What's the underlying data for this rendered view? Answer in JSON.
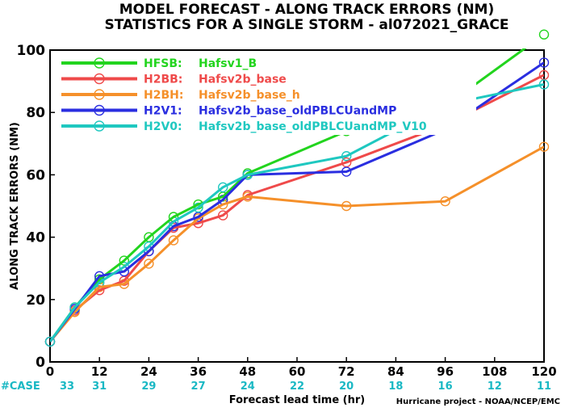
{
  "chart_data": {
    "type": "line",
    "title": "MODEL FORECAST - ALONG TRACK ERRORS (NM)",
    "subtitle": "STATISTICS FOR A SINGLE STORM - al072021_GRACE",
    "xlabel": "Forecast lead time (hr)",
    "ylabel": "ALONG TRACK ERRORS (NM)",
    "xlim": [
      0,
      120
    ],
    "ylim": [
      0,
      100
    ],
    "x_ticks": [
      0,
      12,
      24,
      36,
      48,
      60,
      72,
      84,
      96,
      108,
      120
    ],
    "y_ticks": [
      0,
      20,
      40,
      60,
      80,
      100
    ],
    "case_label": "#CASE",
    "case_counts": [
      33,
      31,
      29,
      27,
      24,
      22,
      20,
      18,
      16,
      12,
      11
    ],
    "credit": "Hurricane project - NOAA/NCEP/EMC",
    "legend_placement": "top-left",
    "grid": false,
    "series": [
      {
        "code": "HFSB",
        "name": "Hafsv1_B",
        "color": "#22d41e",
        "x": [
          0,
          6,
          12,
          18,
          24,
          30,
          36,
          42,
          48,
          72,
          96,
          120
        ],
        "y": [
          6.5,
          17.5,
          26.5,
          32.5,
          40,
          46.5,
          50.5,
          53,
          60.5,
          74,
          82,
          105
        ]
      },
      {
        "code": "H2BB",
        "name": "Hafsv2b_base",
        "color": "#ef4a4a",
        "x": [
          0,
          6,
          12,
          18,
          24,
          30,
          36,
          42,
          48,
          72,
          96,
          120
        ],
        "y": [
          6.5,
          16.5,
          23,
          26,
          35.5,
          43,
          44.5,
          47,
          53.5,
          64,
          76,
          92
        ]
      },
      {
        "code": "H2BH",
        "name": "Hafsv2b_base_h",
        "color": "#f5902a",
        "x": [
          0,
          6,
          12,
          18,
          24,
          30,
          36,
          42,
          48,
          72,
          96,
          120
        ],
        "y": [
          6.5,
          16,
          24,
          25,
          31.5,
          39,
          46,
          50.5,
          53,
          50,
          51.5,
          69
        ]
      },
      {
        "code": "H2V1",
        "name": "Hafsv2b_base_oldPBLCUandMP",
        "color": "#2a2ee0",
        "x": [
          0,
          6,
          12,
          18,
          24,
          30,
          36,
          42,
          48,
          72,
          96,
          120
        ],
        "y": [
          6.5,
          17,
          27.5,
          29,
          35.5,
          43.5,
          46.5,
          52,
          60,
          61,
          74.5,
          96
        ]
      },
      {
        "code": "H2V0",
        "name": "Hafsv2b_base_oldPBLCUandMP_V10",
        "color": "#1fc8c0",
        "x": [
          0,
          6,
          12,
          18,
          24,
          30,
          36,
          42,
          48,
          72,
          96,
          120
        ],
        "y": [
          6.5,
          17.5,
          25.5,
          30.5,
          37,
          45,
          49.5,
          56,
          60,
          66,
          82.5,
          89
        ]
      }
    ]
  }
}
